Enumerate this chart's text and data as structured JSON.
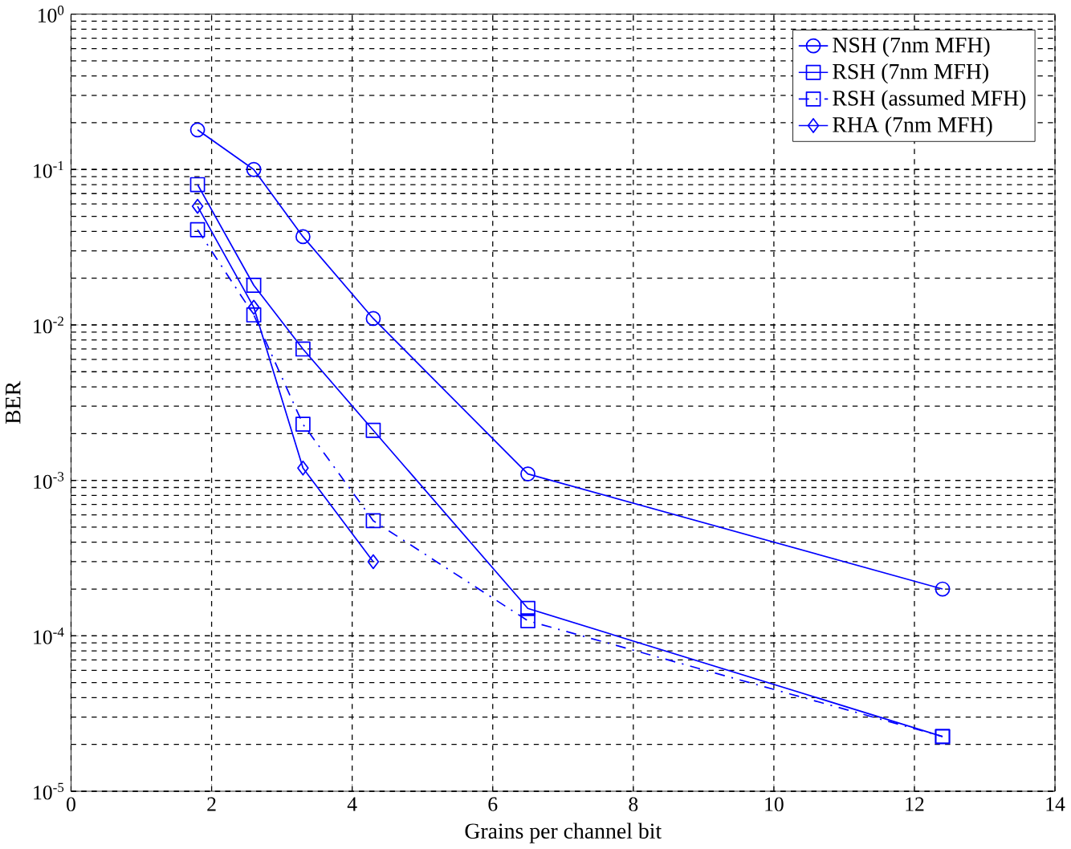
{
  "chart_data": {
    "type": "line",
    "xlabel": "Grains per channel bit",
    "ylabel": "BER",
    "log": "y",
    "grid": true,
    "legend": "top right",
    "xlim": [
      0,
      14
    ],
    "ylim": [
      1e-05,
      1
    ],
    "xticks": [
      0,
      2,
      4,
      6,
      8,
      10,
      12,
      14
    ],
    "yticks": [
      {
        "value": 1e-05,
        "label": "10$^{-5}$"
      },
      {
        "value": 0.0001,
        "label": "10$^{-4}$"
      },
      {
        "value": 0.001,
        "label": "10$^{-3}$"
      },
      {
        "value": 0.01,
        "label": "10$^{-2}$"
      },
      {
        "value": 0.1,
        "label": "10$^{-1}$"
      },
      {
        "value": 1,
        "label": "10$^{0}$"
      }
    ],
    "series": [
      {
        "name": "NSH (7nm MFH)",
        "color": "#0000ff",
        "marker": "circle",
        "line_style": "solid",
        "x": [
          1.8,
          2.6,
          3.3,
          4.3,
          6.5,
          12.4
        ],
        "values": [
          0.18,
          0.1,
          0.037,
          0.011,
          0.0011,
          0.0002
        ]
      },
      {
        "name": "RSH (7nm MFH)",
        "color": "#0000ff",
        "marker": "square",
        "line_style": "solid",
        "x": [
          1.8,
          2.6,
          3.3,
          4.3,
          6.5,
          12.4
        ],
        "values": [
          0.08,
          0.018,
          0.007,
          0.0021,
          0.00015,
          2.25e-05
        ]
      },
      {
        "name": "RSH (assumed MFH)",
        "color": "#0000ff",
        "marker": "square",
        "line_style": "dashed",
        "x": [
          1.8,
          2.6,
          3.3,
          4.3,
          6.5,
          12.4
        ],
        "values": [
          0.041,
          0.0116,
          0.0023,
          0.00055,
          0.000125,
          2.25e-05
        ]
      },
      {
        "name": "RHA (7nm MFH)",
        "color": "#0000ff",
        "marker": "diamond",
        "line_style": "solid",
        "x": [
          1.8,
          2.6,
          3.3,
          4.3
        ],
        "values": [
          0.058,
          0.013,
          0.0012,
          0.0003
        ]
      }
    ]
  }
}
